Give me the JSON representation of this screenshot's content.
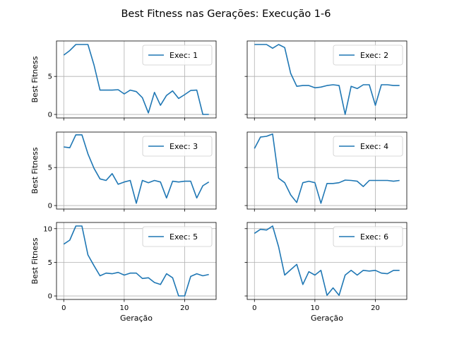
{
  "figure": {
    "title": "Best Fitness nas Gerações: Execução 1-6",
    "line_color": "#1f77b4",
    "grid_color": "#b0b0b0"
  },
  "chart_data": [
    {
      "type": "line",
      "xlabel": "",
      "ylabel": "Best Fitness",
      "xlim": [
        -1.2,
        25.2
      ],
      "ylim": [
        -0.46,
        9.66
      ],
      "grid": true,
      "legend_position": "top-right",
      "xticks": [
        0,
        10,
        20
      ],
      "xtick_labels": [
        "",
        "",
        ""
      ],
      "yticks": [
        0,
        5
      ],
      "ytick_labels": [
        "0",
        "5"
      ],
      "series": [
        {
          "name": "Exec: 1",
          "x": [
            0,
            1,
            2,
            3,
            4,
            5,
            6,
            7,
            8,
            9,
            10,
            11,
            12,
            13,
            14,
            15,
            16,
            17,
            18,
            19,
            20,
            21,
            22,
            23,
            24
          ],
          "y": [
            7.8,
            8.4,
            9.2,
            9.2,
            9.2,
            6.5,
            3.2,
            3.2,
            3.2,
            3.25,
            2.7,
            3.2,
            3.0,
            2.2,
            0.2,
            2.9,
            1.2,
            2.5,
            3.1,
            2.1,
            2.6,
            3.15,
            3.2,
            0,
            0
          ]
        }
      ]
    },
    {
      "type": "line",
      "xlabel": "",
      "ylabel": "",
      "xlim": [
        -1.2,
        25.2
      ],
      "ylim": [
        -0.46,
        9.66
      ],
      "grid": true,
      "legend_position": "top-right",
      "xticks": [
        0,
        10,
        20
      ],
      "xtick_labels": [
        "",
        "",
        ""
      ],
      "yticks": [
        0,
        5
      ],
      "ytick_labels": [
        "",
        ""
      ],
      "series": [
        {
          "name": "Exec: 2",
          "x": [
            0,
            1,
            2,
            3,
            4,
            5,
            6,
            7,
            8,
            9,
            10,
            11,
            12,
            13,
            14,
            15,
            16,
            17,
            18,
            19,
            20,
            21,
            22,
            23,
            24
          ],
          "y": [
            9.2,
            9.2,
            9.2,
            8.7,
            9.2,
            8.8,
            5.4,
            3.7,
            3.8,
            3.8,
            3.5,
            3.6,
            3.8,
            3.9,
            3.8,
            0,
            3.7,
            3.4,
            3.9,
            3.9,
            1.2,
            3.9,
            3.9,
            3.8,
            3.8
          ]
        }
      ]
    },
    {
      "type": "line",
      "xlabel": "",
      "ylabel": "Best Fitness",
      "xlim": [
        -1.2,
        25.2
      ],
      "ylim": [
        -0.46,
        9.66
      ],
      "grid": true,
      "legend_position": "top-right",
      "xticks": [
        0,
        10,
        20
      ],
      "xtick_labels": [
        "",
        "",
        ""
      ],
      "yticks": [
        0,
        5
      ],
      "ytick_labels": [
        "0",
        "5"
      ],
      "series": [
        {
          "name": "Exec: 3",
          "x": [
            0,
            1,
            2,
            3,
            4,
            5,
            6,
            7,
            8,
            9,
            10,
            11,
            12,
            13,
            14,
            15,
            16,
            17,
            18,
            19,
            20,
            21,
            22,
            23,
            24
          ],
          "y": [
            7.7,
            7.6,
            9.3,
            9.3,
            6.8,
            4.9,
            3.5,
            3.3,
            4.2,
            2.8,
            3.1,
            3.3,
            0.3,
            3.3,
            3.0,
            3.3,
            3.1,
            1.0,
            3.2,
            3.1,
            3.2,
            3.2,
            1.0,
            2.6,
            3.1
          ]
        }
      ]
    },
    {
      "type": "line",
      "xlabel": "",
      "ylabel": "",
      "xlim": [
        -1.2,
        25.2
      ],
      "ylim": [
        -0.46,
        9.66
      ],
      "grid": true,
      "legend_position": "top-right",
      "xticks": [
        0,
        10,
        20
      ],
      "xtick_labels": [
        "",
        "",
        ""
      ],
      "yticks": [
        0,
        5
      ],
      "ytick_labels": [
        "",
        ""
      ],
      "series": [
        {
          "name": "Exec: 4",
          "x": [
            0,
            1,
            2,
            3,
            4,
            5,
            6,
            7,
            8,
            9,
            10,
            11,
            12,
            13,
            14,
            15,
            16,
            17,
            18,
            19,
            20,
            21,
            22,
            23,
            24
          ],
          "y": [
            7.5,
            9.0,
            9.1,
            9.4,
            3.6,
            3.0,
            1.4,
            0.4,
            3.0,
            3.2,
            3.0,
            0.3,
            2.9,
            2.9,
            3.0,
            3.35,
            3.3,
            3.2,
            2.5,
            3.3,
            3.3,
            3.3,
            3.3,
            3.2,
            3.3
          ]
        }
      ]
    },
    {
      "type": "line",
      "xlabel": "Geração",
      "ylabel": "Best Fitness",
      "xlim": [
        -1.2,
        25.2
      ],
      "ylim": [
        -0.52,
        10.92
      ],
      "grid": true,
      "legend_position": "top-right",
      "xticks": [
        0,
        10,
        20
      ],
      "xtick_labels": [
        "0",
        "10",
        "20"
      ],
      "yticks": [
        0,
        5,
        10
      ],
      "ytick_labels": [
        "0",
        "5",
        "10"
      ],
      "series": [
        {
          "name": "Exec: 5",
          "x": [
            0,
            1,
            2,
            3,
            4,
            5,
            6,
            7,
            8,
            9,
            10,
            11,
            12,
            13,
            14,
            15,
            16,
            17,
            18,
            19,
            20,
            21,
            22,
            23,
            24
          ],
          "y": [
            7.7,
            8.3,
            10.4,
            10.4,
            6.1,
            4.5,
            3.0,
            3.4,
            3.3,
            3.5,
            3.1,
            3.4,
            3.4,
            2.6,
            2.7,
            2.0,
            1.7,
            3.3,
            2.7,
            0,
            0,
            2.9,
            3.3,
            3.0,
            3.2
          ]
        }
      ]
    },
    {
      "type": "line",
      "xlabel": "Geração",
      "ylabel": "",
      "xlim": [
        -1.2,
        25.2
      ],
      "ylim": [
        -0.52,
        10.92
      ],
      "grid": true,
      "legend_position": "top-right",
      "xticks": [
        0,
        10,
        20
      ],
      "xtick_labels": [
        "0",
        "10",
        "20"
      ],
      "yticks": [
        0,
        5,
        10
      ],
      "ytick_labels": [
        "",
        "",
        ""
      ],
      "series": [
        {
          "name": "Exec: 6",
          "x": [
            0,
            1,
            2,
            3,
            4,
            5,
            6,
            7,
            8,
            9,
            10,
            11,
            12,
            13,
            14,
            15,
            16,
            17,
            18,
            19,
            20,
            21,
            22,
            23,
            24
          ],
          "y": [
            9.3,
            9.9,
            9.8,
            10.4,
            7.3,
            3.1,
            3.9,
            4.7,
            1.7,
            3.6,
            3.1,
            3.8,
            0.1,
            1.2,
            0.1,
            3.1,
            3.8,
            3.1,
            3.8,
            3.7,
            3.8,
            3.4,
            3.3,
            3.8,
            3.8
          ]
        }
      ]
    }
  ]
}
